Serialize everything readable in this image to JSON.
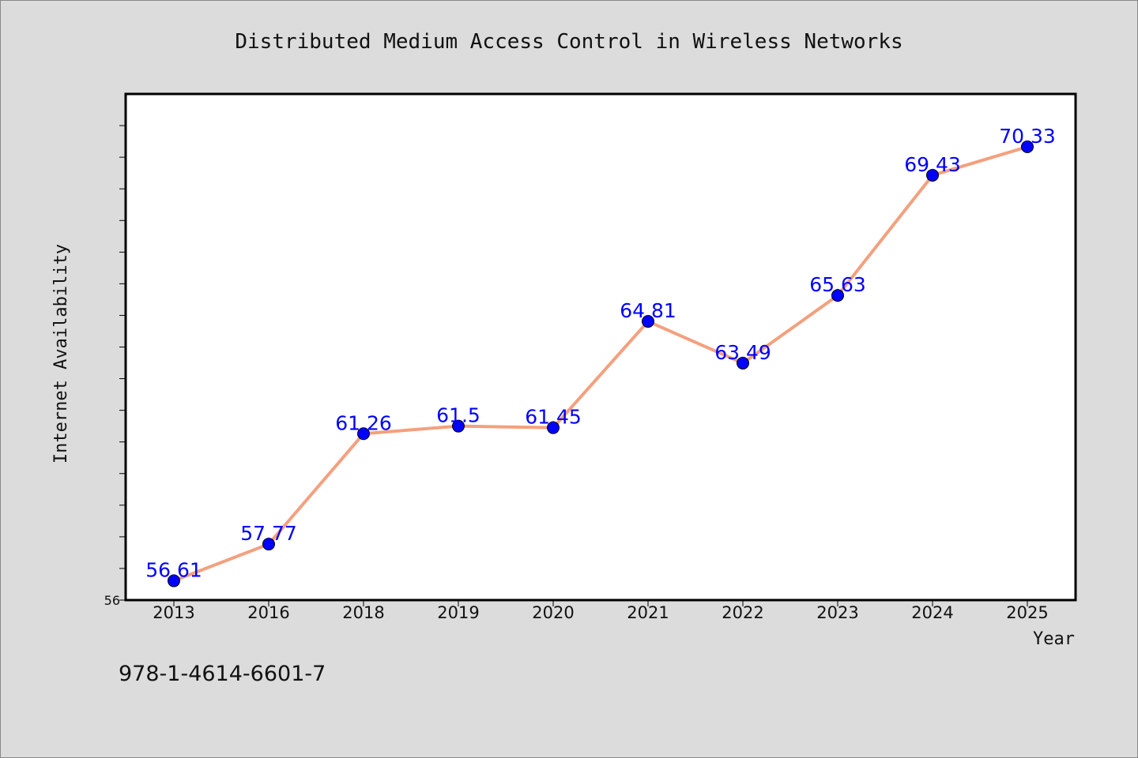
{
  "chart_data": {
    "type": "line",
    "title": "Distributed Medium Access Control in Wireless Networks",
    "xlabel": "Year",
    "ylabel": "Internet Availability",
    "categories": [
      "2013",
      "2016",
      "2018",
      "2019",
      "2020",
      "2021",
      "2022",
      "2023",
      "2024",
      "2025"
    ],
    "series": [
      {
        "values": [
          56.61,
          57.77,
          61.26,
          61.5,
          61.45,
          64.81,
          63.49,
          65.63,
          69.43,
          70.33
        ],
        "data_labels": [
          "56.61",
          "57.77",
          "61.26",
          "61.5",
          "61.45",
          "64.81",
          "63.49",
          "65.63",
          "69.43",
          "70.33"
        ]
      }
    ],
    "ylim": [
      56,
      72
    ],
    "y_tick_labels": [
      "56"
    ],
    "y_minor_tick_step": 1,
    "grid": false,
    "legend": "none",
    "colors": {
      "line": "#f4a07e",
      "marker": "#0000ff",
      "data_label": "#0000ff",
      "background": "#dcdcdc",
      "plot_area": "#ffffff"
    }
  },
  "footer": {
    "isbn": "978-1-4614-6601-7"
  }
}
